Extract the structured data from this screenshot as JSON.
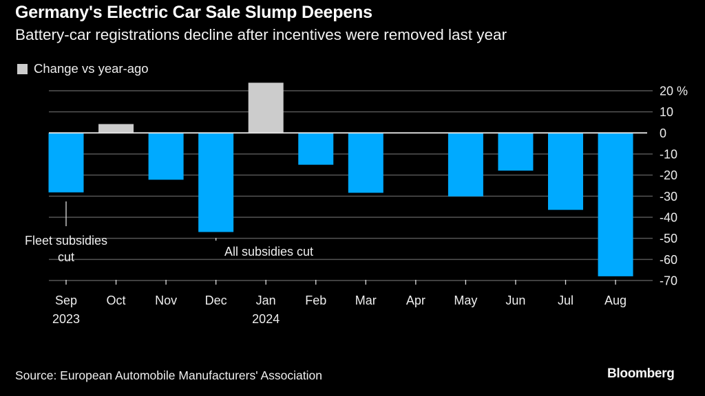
{
  "chart_data": {
    "type": "bar",
    "title": "Germany's Electric Car Sale Slump Deepens",
    "subtitle": "Battery-car registrations decline after incentives were removed last year",
    "legend": [
      {
        "label": "Change vs year-ago",
        "color": "#cccccc"
      }
    ],
    "legend_placement": "top-left",
    "categories": [
      "Sep",
      "Oct",
      "Nov",
      "Dec",
      "Jan",
      "Feb",
      "Mar",
      "Apr",
      "May",
      "Jun",
      "Jul",
      "Aug"
    ],
    "category_sublabels": [
      "2023",
      "",
      "",
      "",
      "2024",
      "",
      "",
      "",
      "",
      "",
      "",
      ""
    ],
    "series": [
      {
        "name": "Change vs year-ago",
        "values": [
          -28.2,
          4.2,
          -22.2,
          -47.0,
          23.8,
          -15.1,
          -28.4,
          0.0,
          -30.1,
          -17.9,
          -36.5,
          -68.0
        ]
      }
    ],
    "positive_color": "#cccccc",
    "negative_color": "#00aaff",
    "ylim": [
      -70,
      20
    ],
    "yticks": [
      20,
      10,
      0,
      -10,
      -20,
      -30,
      -40,
      -50,
      -60,
      -70
    ],
    "ytick_labels": [
      "20 %",
      "10",
      "0",
      "-10",
      "-20",
      "-30",
      "-40",
      "-50",
      "-60",
      "-70"
    ],
    "y_axis_side": "right",
    "xlabel": "",
    "ylabel": "",
    "grid": true,
    "annotations": [
      {
        "category": "Sep",
        "lines": [
          "Fleet subsidies",
          "cut"
        ]
      },
      {
        "category": "Dec",
        "lines": [
          "All subsidies cut"
        ]
      }
    ]
  },
  "header": {
    "title": "Germany's Electric Car Sale Slump Deepens",
    "subtitle": "Battery-car registrations decline after incentives were removed last year"
  },
  "legend": {
    "label": "Change vs year-ago"
  },
  "footer": {
    "source": "Source: European Automobile Manufacturers' Association",
    "brand": "Bloomberg"
  }
}
